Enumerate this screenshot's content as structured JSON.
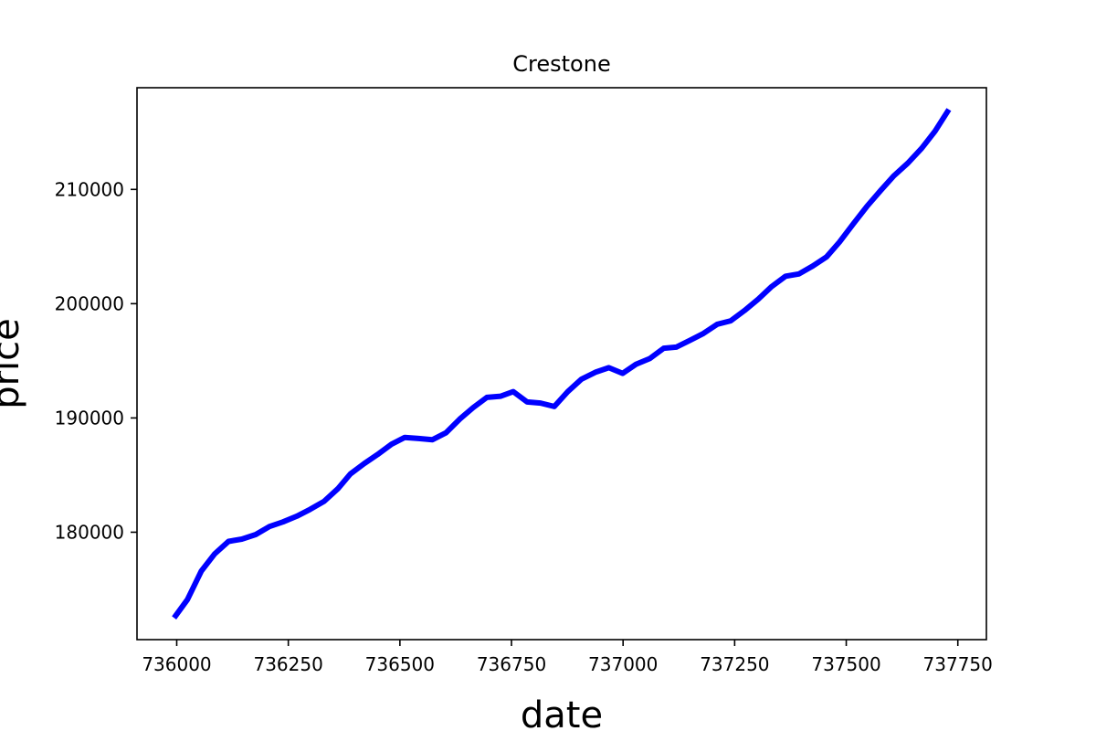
{
  "chart_data": {
    "type": "line",
    "title": "Crestone",
    "xlabel": "date",
    "ylabel": "price",
    "xlim": [
      735911,
      737814
    ],
    "ylim": [
      170600,
      218900
    ],
    "x_ticks": [
      736000,
      736250,
      736500,
      736750,
      737000,
      737250,
      737500,
      737750
    ],
    "x_tick_labels": [
      "736000",
      "736250",
      "736500",
      "736750",
      "737000",
      "737250",
      "737500",
      "737750"
    ],
    "y_ticks": [
      180000,
      190000,
      200000,
      210000
    ],
    "y_tick_labels": [
      "180000",
      "190000",
      "200000",
      "210000"
    ],
    "grid": false,
    "legend": null,
    "colors": {
      "line": "#0000ff",
      "axes": "#000000",
      "background": "#ffffff"
    },
    "series": [
      {
        "x": [
          735994,
          736024,
          736055,
          736085,
          736116,
          736146,
          736177,
          736208,
          736238,
          736269,
          736299,
          736330,
          736361,
          736389,
          736420,
          736450,
          736481,
          736511,
          736542,
          736573,
          736603,
          736634,
          736664,
          736695,
          736726,
          736754,
          736785,
          736815,
          736846,
          736876,
          736907,
          736938,
          736968,
          736999,
          737029,
          737060,
          737091,
          737119,
          737150,
          737180,
          737211,
          737241,
          737272,
          737303,
          737333,
          737364,
          737394,
          737425,
          737456,
          737485,
          737516,
          737546,
          737577,
          737607,
          737638,
          737669,
          737699,
          737730
        ],
        "y": [
          172500,
          174100,
          176600,
          178100,
          179200,
          179400,
          179800,
          180500,
          180900,
          181400,
          182000,
          182700,
          183800,
          185100,
          186000,
          186800,
          187700,
          188300,
          188200,
          188100,
          188700,
          189900,
          190900,
          191800,
          191900,
          192300,
          191400,
          191300,
          191000,
          192300,
          193400,
          194000,
          194400,
          193900,
          194700,
          195200,
          196100,
          196200,
          196800,
          197400,
          198200,
          198500,
          199400,
          200400,
          201500,
          202400,
          202600,
          203300,
          204100,
          205400,
          207000,
          208500,
          209900,
          211200,
          212300,
          213600,
          215100,
          217000
        ]
      }
    ]
  }
}
